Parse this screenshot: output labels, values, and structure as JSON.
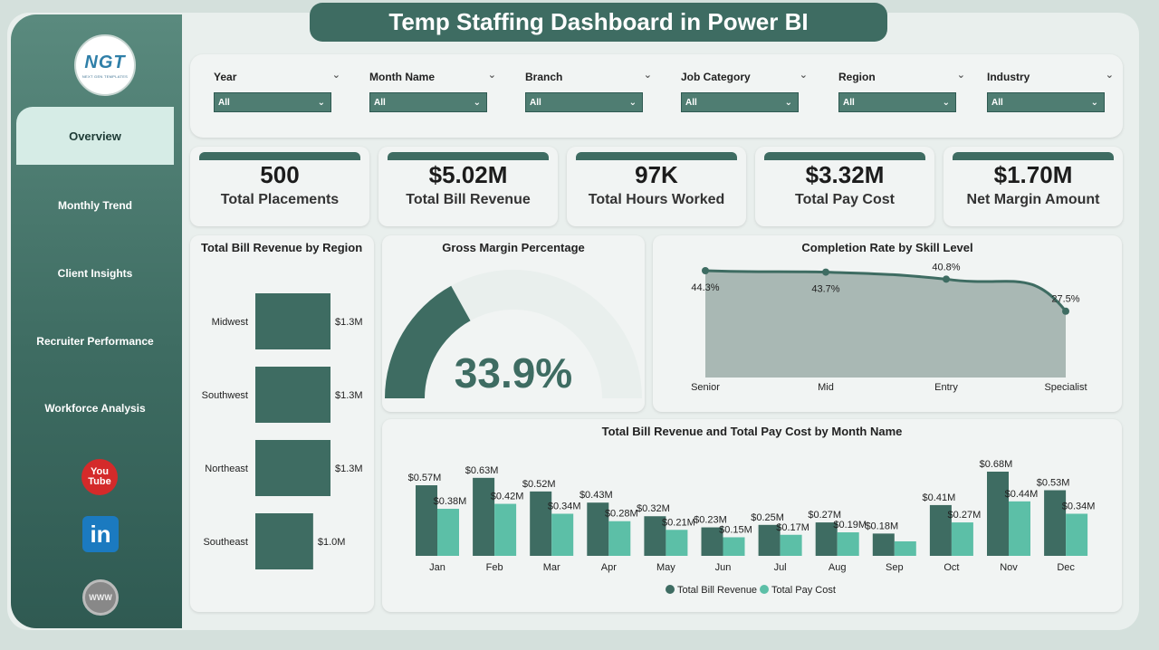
{
  "title": "Temp Staffing Dashboard in Power BI",
  "logo": {
    "main": "NGT",
    "sub": "NEXT GEN TEMPLATES"
  },
  "nav": [
    {
      "label": "Overview",
      "active": true
    },
    {
      "label": "Monthly Trend"
    },
    {
      "label": "Client Insights"
    },
    {
      "label": "Recruiter Performance"
    },
    {
      "label": "Workforce Analysis"
    }
  ],
  "social": {
    "youtube": "You\nTube",
    "linkedin": "in",
    "web": "WWW"
  },
  "filters": [
    {
      "label": "Year",
      "value": "All"
    },
    {
      "label": "Month Name",
      "value": "All"
    },
    {
      "label": "Branch",
      "value": "All"
    },
    {
      "label": "Job Category",
      "value": "All"
    },
    {
      "label": "Region",
      "value": "All"
    },
    {
      "label": "Industry",
      "value": "All"
    }
  ],
  "kpis": [
    {
      "value": "500",
      "label": "Total Placements"
    },
    {
      "value": "$5.02M",
      "label": "Total Bill Revenue"
    },
    {
      "value": "97K",
      "label": "Total Hours Worked"
    },
    {
      "value": "$3.32M",
      "label": "Total Pay Cost"
    },
    {
      "value": "$1.70M",
      "label": "Net Margin Amount"
    }
  ],
  "colors": {
    "dark": "#3e6c62",
    "light": "#5cbfa7",
    "area": "#a9b8b4"
  },
  "chart_data": [
    {
      "type": "bar",
      "title": "Total Bill Revenue by Region",
      "categories": [
        "Midwest",
        "Southwest",
        "Northeast",
        "Southeast"
      ],
      "values": [
        1.3,
        1.3,
        1.3,
        1.0
      ],
      "data_labels": [
        "$1.3M",
        "$1.3M",
        "$1.3M",
        "$1.0M"
      ],
      "orientation": "horizontal"
    },
    {
      "type": "gauge",
      "title": "Gross Margin Percentage",
      "value": 33.9,
      "display": "33.9%",
      "max": 100
    },
    {
      "type": "area",
      "title": "Completion Rate by Skill Level",
      "categories": [
        "Senior",
        "Mid",
        "Entry",
        "Specialist"
      ],
      "values": [
        44.3,
        43.7,
        40.8,
        27.5
      ],
      "data_labels": [
        "44.3%",
        "43.7%",
        "40.8%",
        "27.5%"
      ]
    },
    {
      "type": "bar",
      "title": "Total Bill Revenue and Total Pay Cost by Month Name",
      "categories": [
        "Jan",
        "Feb",
        "Mar",
        "Apr",
        "May",
        "Jun",
        "Jul",
        "Aug",
        "Sep",
        "Oct",
        "Nov",
        "Dec"
      ],
      "series": [
        {
          "name": "Total Bill Revenue",
          "values": [
            0.57,
            0.63,
            0.52,
            0.43,
            0.32,
            0.23,
            0.25,
            0.27,
            0.18,
            0.41,
            0.68,
            0.53
          ],
          "labels": [
            "$0.57M",
            "$0.63M",
            "$0.52M",
            "$0.43M",
            "$0.32M",
            "$0.23M",
            "$0.25M",
            "$0.27M",
            "$0.18M",
            "$0.41M",
            "$0.68M",
            "$0.53M"
          ]
        },
        {
          "name": "Total Pay Cost",
          "values": [
            0.38,
            0.42,
            0.34,
            0.28,
            0.21,
            0.15,
            0.17,
            0.19,
            0.117,
            0.27,
            0.44,
            0.34
          ],
          "labels": [
            "$0.38M",
            "$0.42M",
            "$0.34M",
            "$0.28M",
            "$0.21M",
            "$0.15M",
            "$0.17M",
            "$0.19M",
            "",
            "$0.27M",
            "$0.44M",
            "$0.34M"
          ]
        }
      ],
      "legend": "bottom"
    }
  ]
}
